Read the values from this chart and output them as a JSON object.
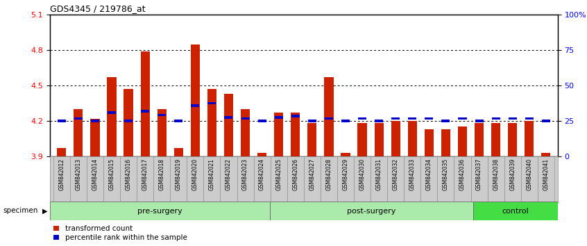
{
  "title": "GDS4345 / 219786_at",
  "categories": [
    "GSM842012",
    "GSM842013",
    "GSM842014",
    "GSM842015",
    "GSM842016",
    "GSM842017",
    "GSM842018",
    "GSM842019",
    "GSM842020",
    "GSM842021",
    "GSM842022",
    "GSM842023",
    "GSM842024",
    "GSM842025",
    "GSM842026",
    "GSM842027",
    "GSM842028",
    "GSM842029",
    "GSM842030",
    "GSM842031",
    "GSM842032",
    "GSM842033",
    "GSM842034",
    "GSM842035",
    "GSM842036",
    "GSM842037",
    "GSM842038",
    "GSM842039",
    "GSM842040",
    "GSM842041"
  ],
  "bar_values": [
    3.97,
    4.3,
    4.22,
    4.57,
    4.47,
    4.79,
    4.3,
    3.97,
    4.85,
    4.47,
    4.43,
    4.3,
    3.93,
    4.27,
    4.27,
    4.18,
    4.57,
    3.93,
    4.18,
    4.18,
    4.2,
    4.2,
    4.13,
    4.13,
    4.15,
    4.18,
    4.18,
    4.18,
    4.2,
    3.93
  ],
  "percentile_values": [
    4.2,
    4.22,
    4.2,
    4.27,
    4.2,
    4.28,
    4.25,
    4.2,
    4.33,
    4.35,
    4.23,
    4.22,
    4.2,
    4.23,
    4.24,
    4.2,
    4.22,
    4.2,
    4.22,
    4.2,
    4.22,
    4.22,
    4.22,
    4.2,
    4.22,
    4.2,
    4.22,
    4.22,
    4.22,
    4.2
  ],
  "groups": [
    {
      "name": "pre-surgery",
      "start": 0,
      "end": 13
    },
    {
      "name": "post-surgery",
      "start": 13,
      "end": 25
    },
    {
      "name": "control",
      "start": 25,
      "end": 30
    }
  ],
  "group_colors": [
    "#aaeaaa",
    "#aaeaaa",
    "#44dd44"
  ],
  "ylim": [
    3.9,
    5.1
  ],
  "y2lim": [
    0,
    100
  ],
  "yticks": [
    3.9,
    4.2,
    4.5,
    4.8,
    5.1
  ],
  "y2ticks": [
    0,
    25,
    50,
    75,
    100
  ],
  "hlines": [
    4.2,
    4.5,
    4.8
  ],
  "bar_color": "#CC2200",
  "percentile_color": "#0000CC",
  "bar_width": 0.55
}
